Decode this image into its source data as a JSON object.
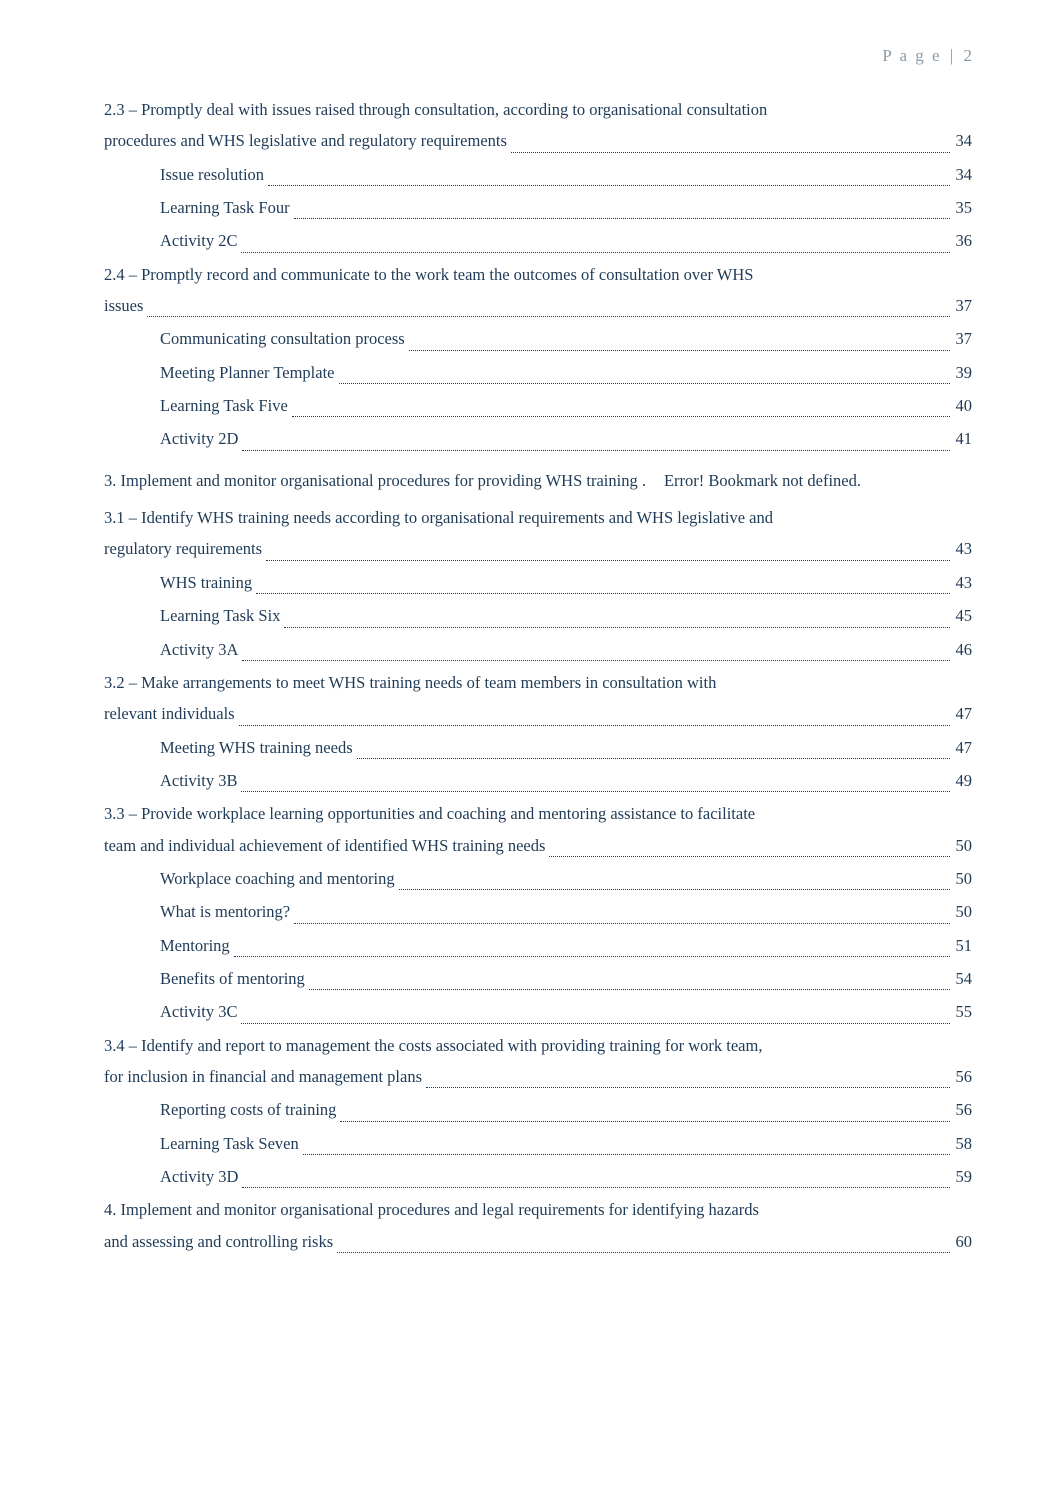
{
  "header": {
    "word_spaced": "P a g e",
    "sep": "|",
    "num": "2"
  },
  "toc": {
    "e1": {
      "t1": "2.3 – Promptly deal with issues raised through consultation, according to organisational consultation",
      "t2": "procedures and WHS legislative and regulatory requirements",
      "page": "34"
    },
    "e2": {
      "title": "Issue resolution",
      "page": "34"
    },
    "e3": {
      "title": "Learning Task Four",
      "page": "35"
    },
    "e4": {
      "title": "Activity 2C",
      "page": "36"
    },
    "e5": {
      "t1": "2.4 – Promptly record and communicate to the work team the outcomes of consultation over WHS",
      "t2": "issues",
      "page": "37"
    },
    "e6": {
      "title": "Communicating consultation process",
      "page": "37"
    },
    "e7": {
      "title": "Meeting Planner Template",
      "page": "39"
    },
    "e8": {
      "title": "Learning Task Five",
      "page": "40"
    },
    "e9": {
      "title": "Activity 2D",
      "page": "41"
    },
    "e10": {
      "title": "3. Implement and monitor organisational procedures for providing WHS training .",
      "tail": "Error! Bookmark not defined."
    },
    "e11": {
      "t1": "3.1 – Identify WHS training needs according to organisational requirements and WHS legislative and",
      "t2": "regulatory requirements",
      "page": "43"
    },
    "e12": {
      "title": "WHS training",
      "page": "43"
    },
    "e13": {
      "title": "Learning Task Six",
      "page": "45"
    },
    "e14": {
      "title": "Activity 3A",
      "page": "46"
    },
    "e15": {
      "t1": "3.2 – Make arrangements to meet WHS training needs of team members in consultation with",
      "t2": "relevant individuals",
      "page": "47"
    },
    "e16": {
      "title": "Meeting WHS training needs",
      "page": "47"
    },
    "e17": {
      "title": "Activity 3B",
      "page": "49"
    },
    "e18": {
      "t1": "3.3 – Provide workplace learning opportunities and coaching and mentoring assistance to facilitate",
      "t2": "team and individual achievement of identified WHS training needs",
      "page": "50"
    },
    "e19": {
      "title": "Workplace coaching and mentoring",
      "page": "50"
    },
    "e20": {
      "title": "What is mentoring?",
      "page": "50"
    },
    "e21": {
      "title": "Mentoring",
      "page": "51"
    },
    "e22": {
      "title": "Benefits of mentoring",
      "page": "54"
    },
    "e23": {
      "title": "Activity 3C",
      "page": "55"
    },
    "e24": {
      "t1": "3.4 – Identify and report to management the costs associated with providing training for work team,",
      "t2": "for inclusion in financial and management plans",
      "page": "56"
    },
    "e25": {
      "title": "Reporting costs of training",
      "page": "56"
    },
    "e26": {
      "title": "Learning Task Seven",
      "page": "58"
    },
    "e27": {
      "title": "Activity 3D",
      "page": "59"
    },
    "e28": {
      "t1": "4. Implement and monitor organisational procedures and legal requirements for identifying hazards",
      "t2": "and assessing and controlling risks",
      "page": "60"
    }
  }
}
